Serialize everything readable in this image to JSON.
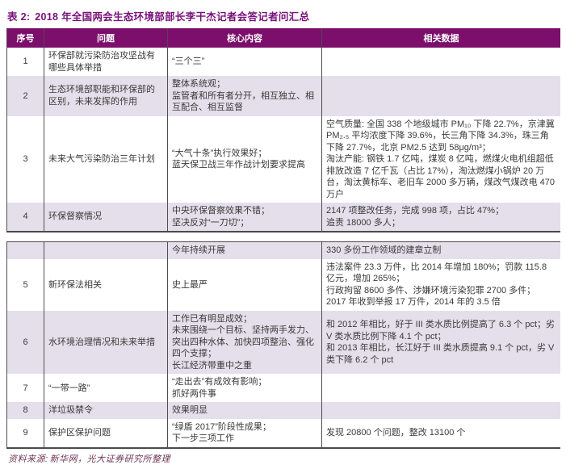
{
  "title": {
    "prefix": "表 2:",
    "text": "2018 年全国两会生态环境部部长李干杰记者会答记者问汇总"
  },
  "colors": {
    "header_bg": "#7B0F6B",
    "header_text": "#FFFFFF",
    "title_text": "#78117A",
    "row_shade": "#E4DFEA",
    "border": "#4A4A4A",
    "source_text": "#6E3553"
  },
  "table": {
    "headers": [
      "序号",
      "问题",
      "核心内容",
      "相关数据"
    ],
    "sections": [
      {
        "rows": [
          {
            "no": "1",
            "question": "环保部就污染防治攻坚战有哪些具体举措",
            "core": [
              "“三个三”"
            ],
            "data": [],
            "shaded": false
          },
          {
            "no": "2",
            "question": "生态环境部职能和环保部的区别，未来发挥的作用",
            "core": [
              "整体系统观；",
              "监管者和所有者分开，相互独立、相互配合、相互监督"
            ],
            "data": [],
            "shaded": true
          },
          {
            "no": "3",
            "question": "未来大气污染防治三年计划",
            "core": [
              "“大气十条”执行效果好；",
              "蓝天保卫战三年作战计划要求提高"
            ],
            "data": [
              "空气质量: 全国 338 个地级城市 PM₁₀ 下降 22.7%，京津冀 PM₂.₅ 平均浓度下降 39.6%，长三角下降 34.3%，珠三角下降 27.7%，北京 PM2.5 达到 58μg/m³；",
              "淘汰产能: 钢铁 1.7 亿吨，煤炭 8 亿吨，燃煤火电机组超低排放改造 7 亿千瓦（占比 17%），淘汰燃煤小锅炉 20 万台，淘汰黄标车、老旧车 2000 多万辆，煤改气煤改电 470 万户"
            ],
            "shaded": false
          },
          {
            "no": "4",
            "question": "环保督察情况",
            "core": [
              "中央环保督察效果不错；",
              "坚决反对“一刀切”；"
            ],
            "data": [
              "2147 项整改任务，完成 998 项，占比 47%；",
              "追责 18000 多人；"
            ],
            "shaded": true
          }
        ]
      },
      {
        "rows": [
          {
            "no": "",
            "question": "",
            "core": [
              "今年持续开展"
            ],
            "data": [
              "330 多份工作领域的建章立制"
            ],
            "shaded": true
          },
          {
            "no": "5",
            "question": "新环保法相关",
            "core": [
              "史上最严"
            ],
            "data": [
              "违法案件 23.3 万件，比 2014 年增加 180%；罚款 115.8 亿元，增加 265%；",
              "行政拘留 8600 多件、涉嫌环境污染犯罪 2700 多件；",
              "2017 年收到举报 17 万件，2014 年的 3.5 倍"
            ],
            "shaded": false
          },
          {
            "no": "6",
            "question": "水环境治理情况和未来举措",
            "core": [
              "工作已有明显成效；",
              "未来围绕一个目标、坚持两手发力、突出四种水体、加快四项整治、强化四个支撑；",
              "长江经济带重中之重"
            ],
            "data": [
              "和 2012 年相比，好于 III 类水质比例提高了 6.3 个 pct；劣 V 类水质比例下降 4.1 个 pct；",
              "和 2013 年相比，长江好于 III 类水质提高 9.1 个 pct，劣 V 类下降 6.2 个 pct"
            ],
            "shaded": true
          },
          {
            "no": "7",
            "question": "“一带一路”",
            "core": [
              "“走出去”有成效有影响；",
              "抓好两件事"
            ],
            "data": [],
            "shaded": false
          },
          {
            "no": "8",
            "question": "洋垃圾禁令",
            "core": [
              "效果明显"
            ],
            "data": [],
            "shaded": true
          },
          {
            "no": "9",
            "question": "保护区保护问题",
            "core": [
              "“绿盾 2017”阶段性成果；",
              "下一步三项工作"
            ],
            "data": [
              "发现 20800 个问题，整改 13100 个"
            ],
            "shaded": false
          }
        ]
      }
    ]
  },
  "footer": {
    "label": "资料来源:",
    "text": "新华网，光大证券研究所整理"
  }
}
